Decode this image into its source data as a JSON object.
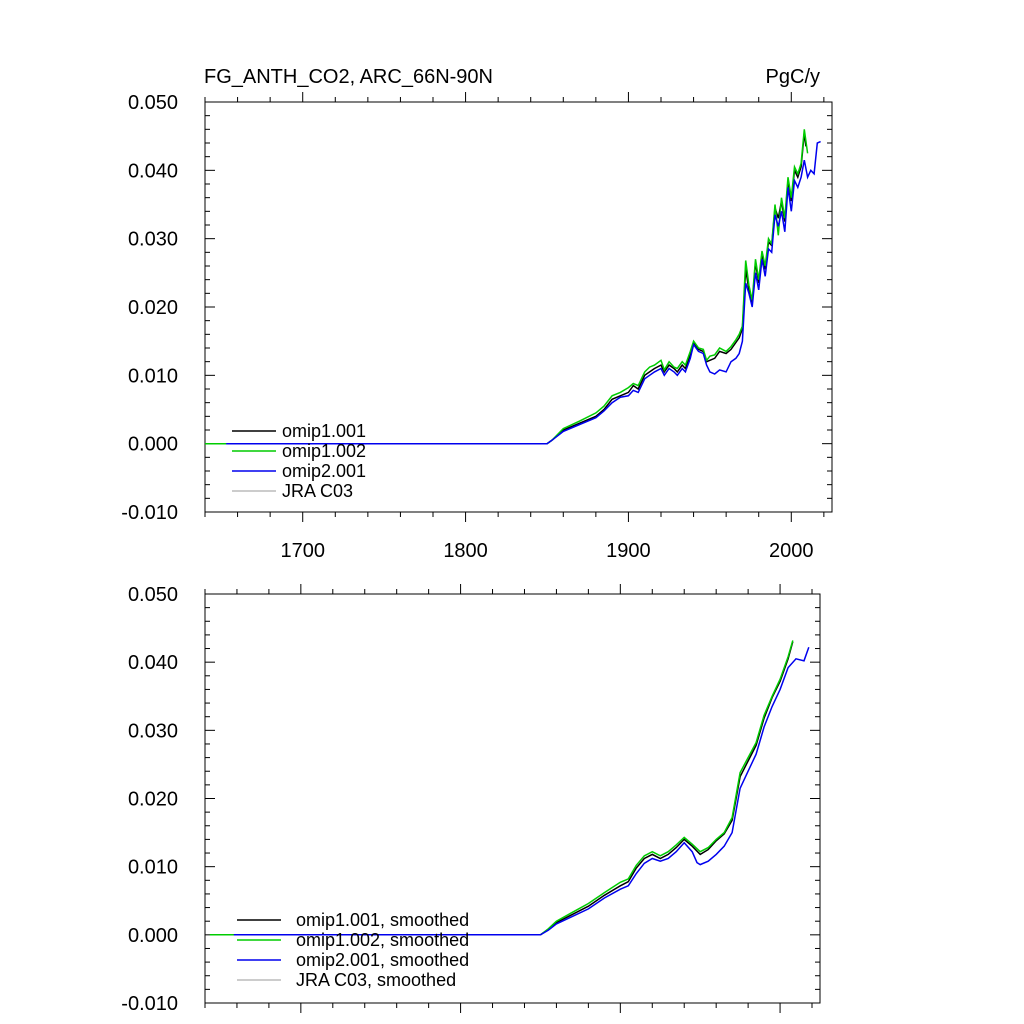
{
  "chart_data": [
    {
      "type": "line",
      "title": "FG_ANTH_CO2, ARC_66N-90N",
      "units": "PgC/y",
      "xlabel": "",
      "ylabel": "",
      "xlim": [
        1640,
        2025
      ],
      "ylim": [
        -0.01,
        0.05
      ],
      "x_ticks": [
        1700,
        1800,
        1900,
        2000
      ],
      "x_tick_labels": [
        "1700",
        "1800",
        "1900",
        "2000"
      ],
      "y_ticks": [
        -0.01,
        0.0,
        0.01,
        0.02,
        0.03,
        0.04,
        0.05
      ],
      "y_tick_labels": [
        "-0.010",
        "0.000",
        "0.010",
        "0.020",
        "0.030",
        "0.040",
        "0.050"
      ],
      "grid": false,
      "legend_position": "bottom-left",
      "series": [
        {
          "name": "omip1.001",
          "color": "#000000",
          "x": [
            1653,
            1850,
            1853,
            1860,
            1870,
            1880,
            1885,
            1890,
            1895,
            1900,
            1903,
            1906,
            1910,
            1913,
            1916,
            1920,
            1922,
            1925,
            1928,
            1930,
            1933,
            1935,
            1938,
            1940,
            1943,
            1946,
            1948,
            1950,
            1953,
            1956,
            1960,
            1963,
            1966,
            1968,
            1970,
            1972,
            1974,
            1976,
            1978,
            1980,
            1982,
            1984,
            1986,
            1988,
            1990,
            1992,
            1994,
            1996,
            1998,
            2000,
            2002,
            2004,
            2006,
            2008,
            2009
          ],
          "y": [
            0.0,
            0.0,
            0.0005,
            0.002,
            0.003,
            0.004,
            0.005,
            0.0065,
            0.007,
            0.0075,
            0.0085,
            0.008,
            0.01,
            0.0105,
            0.011,
            0.0115,
            0.0105,
            0.0115,
            0.011,
            0.0105,
            0.0115,
            0.011,
            0.013,
            0.0148,
            0.0138,
            0.0135,
            0.012,
            0.0122,
            0.0125,
            0.0135,
            0.0132,
            0.0138,
            0.0148,
            0.0155,
            0.0168,
            0.0255,
            0.0225,
            0.0205,
            0.0265,
            0.0235,
            0.0278,
            0.0255,
            0.0295,
            0.029,
            0.0345,
            0.033,
            0.0355,
            0.0325,
            0.0385,
            0.0355,
            0.04,
            0.039,
            0.0405,
            0.0455,
            0.0435
          ]
        },
        {
          "name": "omip1.002",
          "color": "#00cc00",
          "x": [
            1640,
            1850,
            1853,
            1860,
            1870,
            1880,
            1885,
            1890,
            1895,
            1900,
            1903,
            1906,
            1910,
            1913,
            1916,
            1920,
            1922,
            1925,
            1928,
            1930,
            1933,
            1935,
            1938,
            1940,
            1943,
            1946,
            1948,
            1950,
            1953,
            1956,
            1960,
            1963,
            1966,
            1968,
            1970,
            1972,
            1974,
            1976,
            1978,
            1980,
            1982,
            1984,
            1986,
            1988,
            1990,
            1992,
            1994,
            1996,
            1998,
            2000,
            2002,
            2004,
            2006,
            2008,
            2010
          ],
          "y": [
            0.0,
            0.0,
            0.0005,
            0.0022,
            0.0033,
            0.0045,
            0.0055,
            0.007,
            0.0075,
            0.0082,
            0.0088,
            0.0085,
            0.0105,
            0.0112,
            0.0115,
            0.0122,
            0.0108,
            0.012,
            0.0112,
            0.011,
            0.012,
            0.0115,
            0.0135,
            0.015,
            0.014,
            0.0138,
            0.0122,
            0.0128,
            0.013,
            0.014,
            0.0135,
            0.0142,
            0.0152,
            0.016,
            0.0172,
            0.0268,
            0.0232,
            0.021,
            0.027,
            0.024,
            0.0282,
            0.026,
            0.03,
            0.0292,
            0.035,
            0.0305,
            0.036,
            0.033,
            0.039,
            0.036,
            0.0405,
            0.0395,
            0.041,
            0.046,
            0.0425
          ]
        },
        {
          "name": "omip2.001",
          "color": "#0000ee",
          "x": [
            1653,
            1850,
            1853,
            1860,
            1870,
            1880,
            1885,
            1890,
            1895,
            1900,
            1903,
            1906,
            1910,
            1913,
            1916,
            1920,
            1922,
            1925,
            1928,
            1930,
            1933,
            1935,
            1938,
            1940,
            1943,
            1946,
            1948,
            1950,
            1953,
            1956,
            1960,
            1963,
            1966,
            1968,
            1970,
            1972,
            1974,
            1976,
            1978,
            1980,
            1982,
            1984,
            1986,
            1988,
            1990,
            1992,
            1994,
            1996,
            1998,
            2000,
            2002,
            2004,
            2006,
            2008,
            2010,
            2012,
            2014,
            2016,
            2018
          ],
          "y": [
            0.0,
            0.0,
            0.0005,
            0.0018,
            0.0028,
            0.0038,
            0.0048,
            0.006,
            0.0068,
            0.007,
            0.0078,
            0.0075,
            0.0095,
            0.01,
            0.0105,
            0.011,
            0.01,
            0.011,
            0.0105,
            0.01,
            0.011,
            0.0105,
            0.0125,
            0.0145,
            0.0135,
            0.0132,
            0.0115,
            0.0105,
            0.0102,
            0.0108,
            0.0105,
            0.012,
            0.0125,
            0.0132,
            0.015,
            0.0235,
            0.022,
            0.02,
            0.025,
            0.0225,
            0.027,
            0.0245,
            0.0285,
            0.028,
            0.0335,
            0.0318,
            0.034,
            0.031,
            0.0375,
            0.034,
            0.0385,
            0.0375,
            0.039,
            0.0415,
            0.039,
            0.04,
            0.0395,
            0.044,
            0.0442
          ]
        },
        {
          "name": "JRA C03",
          "color": "#bbbbbb",
          "x": [],
          "y": []
        }
      ]
    },
    {
      "type": "line",
      "title": "",
      "units": "",
      "xlabel": "",
      "ylabel": "",
      "xlim": [
        1640,
        2025
      ],
      "ylim": [
        -0.01,
        0.05
      ],
      "x_ticks": [
        1700,
        1800,
        1900,
        2000
      ],
      "x_tick_labels": [
        "",
        "",
        "",
        ""
      ],
      "y_ticks": [
        -0.01,
        0.0,
        0.01,
        0.02,
        0.03,
        0.04,
        0.05
      ],
      "y_tick_labels": [
        "-0.010",
        "0.000",
        "0.010",
        "0.020",
        "0.030",
        "0.040",
        "0.050"
      ],
      "grid": false,
      "legend_position": "bottom-left",
      "series": [
        {
          "name": "omip1.001, smoothed",
          "color": "#000000",
          "x": [
            1658,
            1850,
            1855,
            1860,
            1870,
            1880,
            1890,
            1900,
            1905,
            1910,
            1915,
            1920,
            1925,
            1930,
            1935,
            1940,
            1945,
            1950,
            1955,
            1960,
            1965,
            1970,
            1975,
            1980,
            1985,
            1990,
            1995,
            2000,
            2005,
            2008
          ],
          "y": [
            0.0,
            0.0,
            0.0008,
            0.0018,
            0.003,
            0.0042,
            0.0058,
            0.0072,
            0.0078,
            0.0098,
            0.0112,
            0.0118,
            0.0112,
            0.0118,
            0.0128,
            0.014,
            0.013,
            0.0118,
            0.0125,
            0.0138,
            0.0148,
            0.0168,
            0.0232,
            0.0255,
            0.0278,
            0.0318,
            0.0348,
            0.0372,
            0.0405,
            0.043
          ]
        },
        {
          "name": "omip1.002, smoothed",
          "color": "#00cc00",
          "x": [
            1643,
            1850,
            1855,
            1860,
            1870,
            1880,
            1890,
            1900,
            1905,
            1910,
            1915,
            1920,
            1925,
            1930,
            1935,
            1940,
            1945,
            1950,
            1955,
            1960,
            1965,
            1970,
            1975,
            1980,
            1985,
            1990,
            1995,
            2000,
            2005,
            2008
          ],
          "y": [
            0.0,
            0.0,
            0.0009,
            0.002,
            0.0033,
            0.0046,
            0.0062,
            0.0077,
            0.0082,
            0.0102,
            0.0116,
            0.0122,
            0.0116,
            0.0122,
            0.0132,
            0.0143,
            0.0133,
            0.0122,
            0.0128,
            0.014,
            0.015,
            0.0172,
            0.0238,
            0.026,
            0.0282,
            0.0322,
            0.035,
            0.0375,
            0.0408,
            0.0432
          ]
        },
        {
          "name": "omip2.001, smoothed",
          "color": "#0000ee",
          "x": [
            1658,
            1850,
            1855,
            1860,
            1870,
            1880,
            1890,
            1900,
            1905,
            1910,
            1915,
            1920,
            1925,
            1930,
            1935,
            1940,
            1945,
            1948,
            1950,
            1955,
            1960,
            1965,
            1970,
            1975,
            1980,
            1985,
            1990,
            1995,
            2000,
            2005,
            2010,
            2015,
            2018
          ],
          "y": [
            0.0,
            0.0,
            0.0007,
            0.0016,
            0.0027,
            0.0038,
            0.0054,
            0.0067,
            0.0072,
            0.009,
            0.0105,
            0.0112,
            0.0108,
            0.0112,
            0.0122,
            0.0135,
            0.0122,
            0.0106,
            0.0103,
            0.0108,
            0.0118,
            0.013,
            0.015,
            0.0215,
            0.024,
            0.0265,
            0.0305,
            0.0335,
            0.036,
            0.0392,
            0.0405,
            0.0402,
            0.0422
          ]
        },
        {
          "name": "JRA C03, smoothed",
          "color": "#bbbbbb",
          "x": [],
          "y": []
        }
      ]
    }
  ]
}
